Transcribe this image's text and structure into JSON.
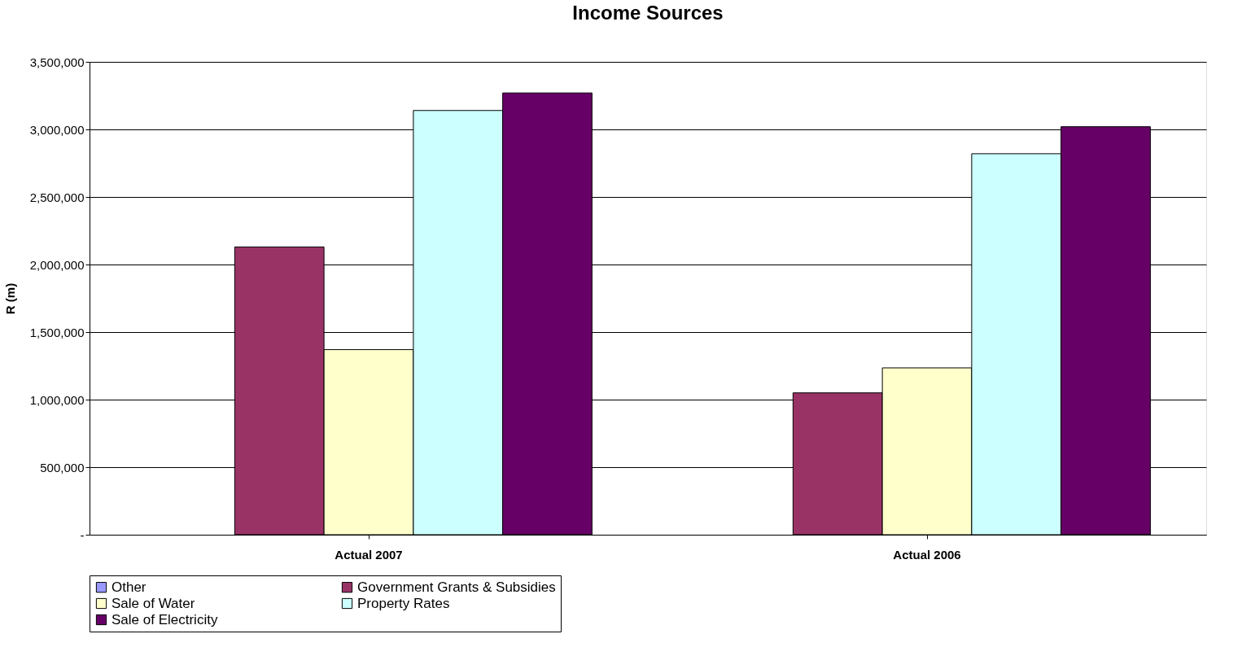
{
  "chart_data": {
    "type": "bar",
    "title": "Income Sources",
    "ylabel": "R (m)",
    "categories": [
      "Actual 2007",
      "Actual 2006"
    ],
    "series": [
      {
        "name": "Other",
        "color": "#9999ff",
        "values": [
          null,
          null
        ]
      },
      {
        "name": "Government Grants & Subsidies",
        "color": "#993366",
        "values": [
          2130000,
          1050000
        ]
      },
      {
        "name": "Sale of Water",
        "color": "#ffffcc",
        "values": [
          1370000,
          1235000
        ]
      },
      {
        "name": "Property Rates",
        "color": "#ccffff",
        "values": [
          3140000,
          2820000
        ]
      },
      {
        "name": "Sale of Electricity",
        "color": "#660066",
        "values": [
          3270000,
          3020000
        ]
      }
    ],
    "ylim": [
      0,
      3500000
    ],
    "yticks": [
      {
        "value": 0,
        "label": "-"
      },
      {
        "value": 500000,
        "label": "500,000"
      },
      {
        "value": 1000000,
        "label": "1,000,000"
      },
      {
        "value": 1500000,
        "label": "1,500,000"
      },
      {
        "value": 2000000,
        "label": "2,000,000"
      },
      {
        "value": 2500000,
        "label": "2,500,000"
      },
      {
        "value": 3000000,
        "label": "3,000,000"
      },
      {
        "value": 3500000,
        "label": "3,500,000"
      }
    ],
    "grid": "y",
    "legend": "bottom"
  }
}
